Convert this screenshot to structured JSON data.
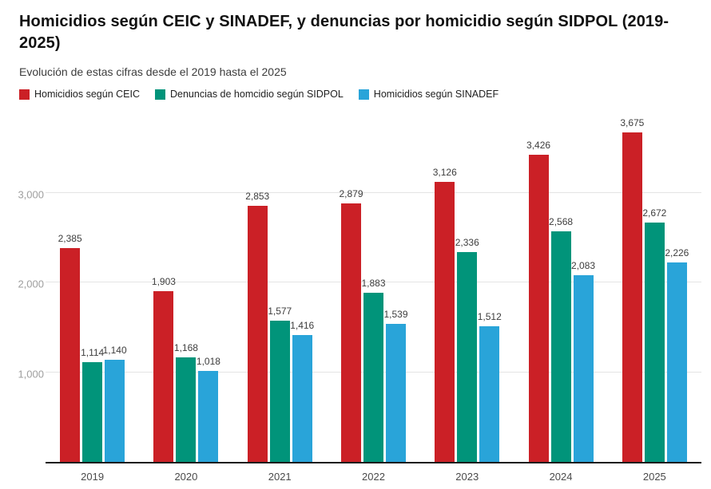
{
  "title": "Homicidios según CEIC y SINADEF, y denuncias por homicidio según SIDPOL (2019-2025)",
  "subtitle": "Evolución de estas cifras desde el 2019 hasta el 2025",
  "chart_data": {
    "type": "bar",
    "title": "Homicidios según CEIC y SINADEF, y denuncias por homicidio según SIDPOL (2019-2025)",
    "subtitle": "Evolución de estas cifras desde el 2019 hasta el 2025",
    "categories": [
      "2019",
      "2020",
      "2021",
      "2022",
      "2023",
      "2024",
      "2025"
    ],
    "series": [
      {
        "name": "Homicidios según CEIC",
        "color": "#cb2026",
        "values": [
          2385,
          1903,
          2853,
          2879,
          3126,
          3426,
          3675
        ]
      },
      {
        "name": "Denuncias de homcidio según SIDPOL",
        "color": "#01947a",
        "values": [
          1114,
          1168,
          1577,
          1883,
          2336,
          2568,
          2672
        ]
      },
      {
        "name": "Homicidios según SINADEF",
        "color": "#29a4d9",
        "values": [
          1140,
          1018,
          1416,
          1539,
          1512,
          2083,
          2226
        ]
      }
    ],
    "value_labels": [
      "2,385",
      "1,903",
      "2,853",
      "2,879",
      "3,126",
      "3,426",
      "3,675",
      "1,114",
      "1,168",
      "1,577",
      "1,883",
      "2,336",
      "2,568",
      "2,672",
      "1,140",
      "1,018",
      "1,416",
      "1,539",
      "1,512",
      "2,083",
      "2,226"
    ],
    "xlabel": "",
    "ylabel": "",
    "yticks": [
      {
        "value": 1000,
        "label": "1,000"
      },
      {
        "value": 2000,
        "label": "2,000"
      },
      {
        "value": 3000,
        "label": "3,000"
      }
    ],
    "ylim": [
      0,
      3870
    ],
    "grid": true,
    "legend_position": "top"
  },
  "colors": {
    "ceic_red": "#cb2026",
    "sidpol_teal": "#01947a",
    "sinadef_blue": "#29a4d9",
    "gridline": "#e4e4e4",
    "axis_line": "#1c1c1c",
    "ytick_text": "#9e9e9e"
  }
}
